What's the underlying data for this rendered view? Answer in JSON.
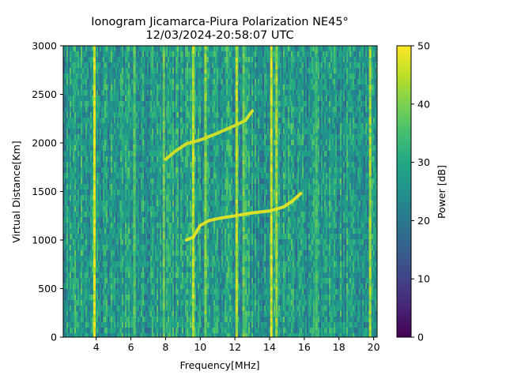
{
  "chart_data": {
    "type": "heatmap",
    "title": "Ionogram Jicamarca-Piura Polarization NE45°",
    "subtitle": "12/03/2024-20:58:07 UTC",
    "xlabel": "Frequency[MHz]",
    "ylabel": "Virtual Distance[Km]",
    "xlim": [
      2.1,
      20.2
    ],
    "ylim": [
      0,
      3000
    ],
    "xticks": [
      4,
      6,
      8,
      10,
      12,
      14,
      16,
      18,
      20
    ],
    "yticks": [
      0,
      500,
      1000,
      1500,
      2000,
      2500,
      3000
    ],
    "colorbar": {
      "label": "Power [dB]",
      "range": [
        0,
        50
      ],
      "ticks": [
        0,
        10,
        20,
        30,
        40,
        50
      ],
      "colormap": "viridis"
    },
    "background_level_db": 27,
    "vertical_interference_bands_mhz": [
      {
        "freq": 3.9,
        "level_db": 47
      },
      {
        "freq": 6.2,
        "level_db": 36
      },
      {
        "freq": 7.9,
        "level_db": 38
      },
      {
        "freq": 9.6,
        "level_db": 44
      },
      {
        "freq": 10.3,
        "level_db": 40
      },
      {
        "freq": 12.1,
        "level_db": 44
      },
      {
        "freq": 12.5,
        "level_db": 38
      },
      {
        "freq": 14.1,
        "level_db": 46
      },
      {
        "freq": 14.4,
        "level_db": 42
      },
      {
        "freq": 16.7,
        "level_db": 34
      },
      {
        "freq": 19.8,
        "level_db": 42
      }
    ],
    "echo_traces": [
      {
        "name": "",
        "level_db": 48,
        "points": [
          [
            9.2,
            1000
          ],
          [
            9.6,
            1030
          ],
          [
            10.0,
            1150
          ],
          [
            10.5,
            1200
          ],
          [
            11.0,
            1220
          ],
          [
            12.0,
            1250
          ],
          [
            13.0,
            1280
          ],
          [
            14.0,
            1300
          ],
          [
            14.8,
            1340
          ],
          [
            15.3,
            1400
          ],
          [
            15.8,
            1480
          ]
        ]
      },
      {
        "name": "",
        "level_db": 47,
        "points": [
          [
            8.0,
            1830
          ],
          [
            8.6,
            1920
          ],
          [
            9.2,
            1990
          ],
          [
            10.0,
            2030
          ],
          [
            11.0,
            2100
          ],
          [
            12.0,
            2180
          ],
          [
            12.6,
            2230
          ],
          [
            13.0,
            2330
          ]
        ]
      }
    ]
  }
}
